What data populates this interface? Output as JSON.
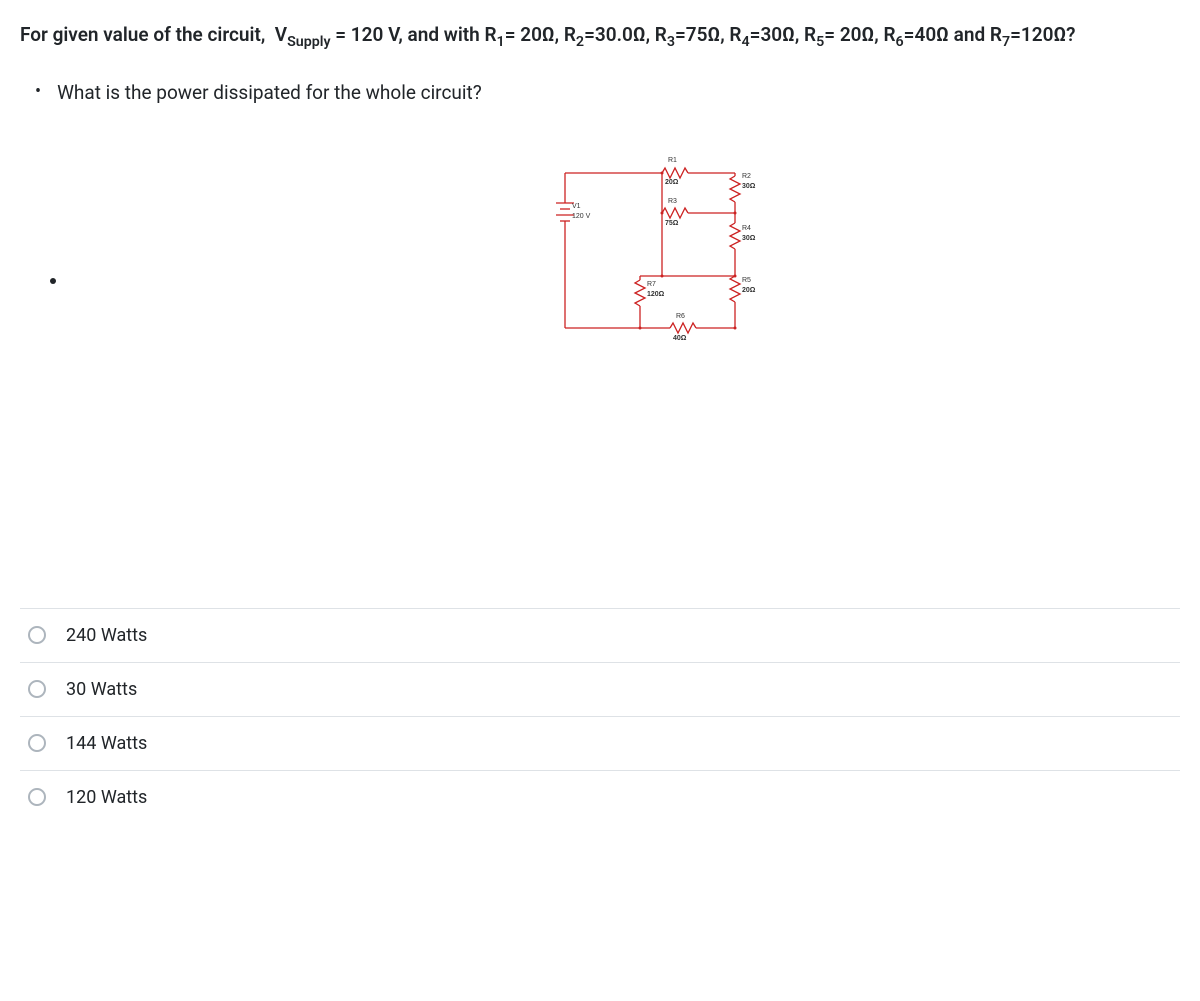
{
  "question": {
    "stem_html": "For given value of the circuit,&nbsp;&nbsp;V<sub>Supply</sub> = 120 V, and with R<sub>1</sub>= 20Ω, R<sub>2</sub>=30.0Ω, R<sub>3</sub>=75Ω, R<sub>4</sub>=30Ω, R<sub>5</sub>= 20Ω, R<sub>6</sub>=40Ω and R<sub>7</sub>=120Ω?",
    "bullet": "What is the power dissipated for the whole circuit?"
  },
  "circuit": {
    "source": {
      "label": "V1",
      "value": "120 V"
    },
    "resistors": {
      "R1": {
        "label": "R1",
        "value": "20Ω"
      },
      "R2": {
        "label": "R2",
        "value": "30Ω"
      },
      "R3": {
        "label": "R3",
        "value": "75Ω"
      },
      "R4": {
        "label": "R4",
        "value": "30Ω"
      },
      "R5": {
        "label": "R5",
        "value": "20Ω"
      },
      "R6": {
        "label": "R6",
        "value": "40Ω"
      },
      "R7": {
        "label": "R7",
        "value": "120Ω"
      }
    },
    "wire_color": "#cc2222",
    "bg_color": "#ffffff"
  },
  "options": [
    {
      "label": "240 Watts"
    },
    {
      "label": "30 Watts"
    },
    {
      "label": "144 Watts"
    },
    {
      "label": "120 Watts"
    }
  ]
}
